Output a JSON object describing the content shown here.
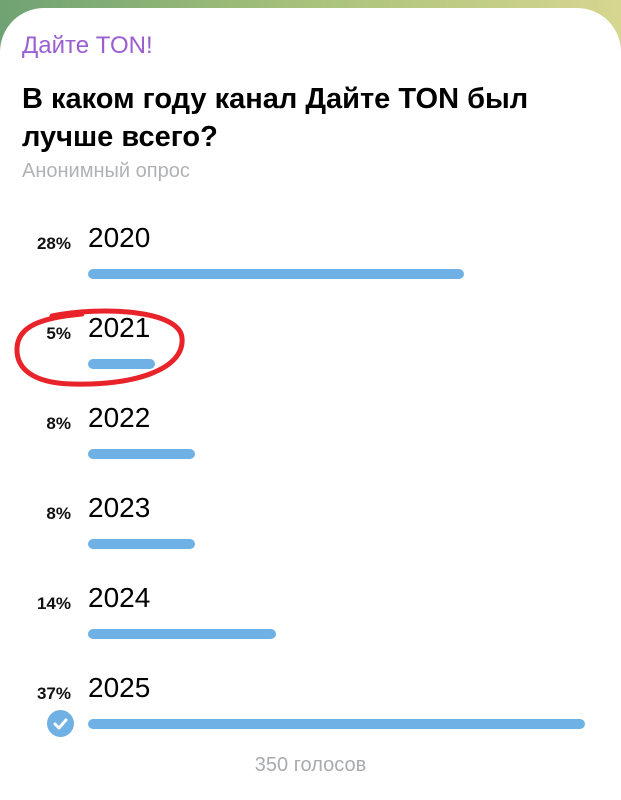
{
  "channel_name": "Дайте TON!",
  "question": "В каком году канал Дайте TON был лучше всего?",
  "poll_type": "Анонимный опрос",
  "options": [
    {
      "label": "2020",
      "percent": "28%",
      "value": 28
    },
    {
      "label": "2021",
      "percent": "5%",
      "value": 5
    },
    {
      "label": "2022",
      "percent": "8%",
      "value": 8
    },
    {
      "label": "2023",
      "percent": "8%",
      "value": 8
    },
    {
      "label": "2024",
      "percent": "14%",
      "value": 14
    },
    {
      "label": "2025",
      "percent": "37%",
      "value": 37,
      "selected": true
    }
  ],
  "votes": "350 голосов",
  "annotation": {
    "type": "red-circle",
    "target_option": "2021",
    "color": "#e8232a"
  },
  "colors": {
    "accent": "#6fb1e4",
    "channel": "#9a5fd0"
  }
}
